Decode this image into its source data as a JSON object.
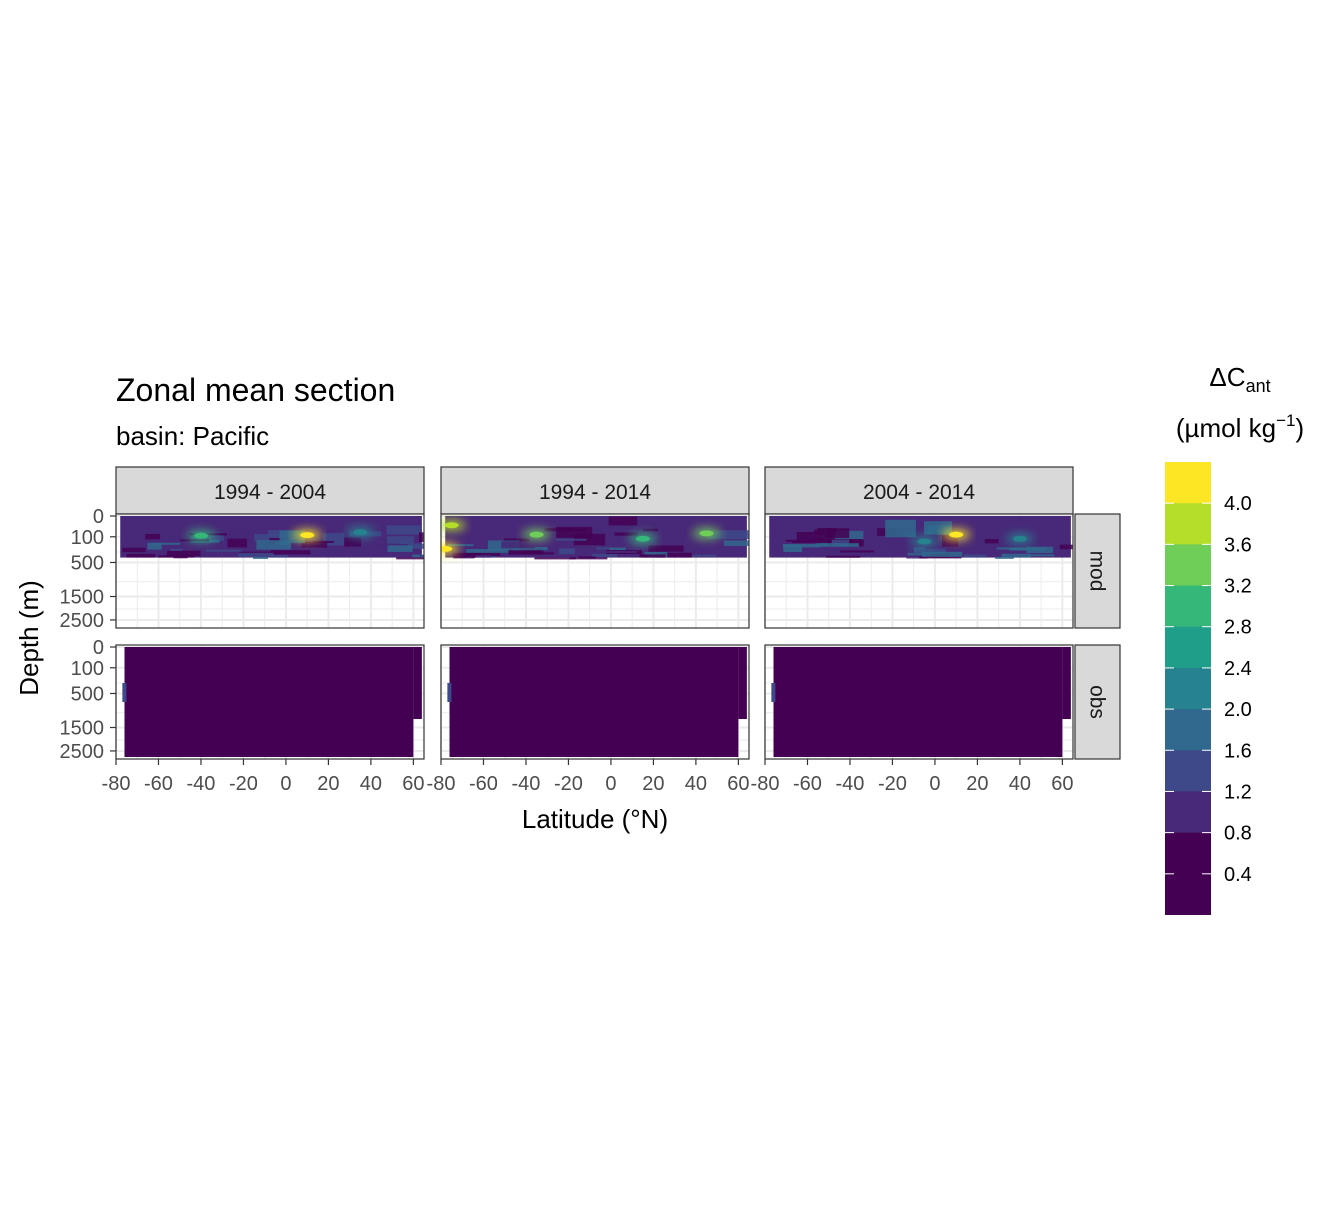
{
  "chart_data": {
    "type": "heatmap",
    "title": "Zonal mean section",
    "subtitle": "basin: Pacific",
    "xlabel": "Latitude (°N)",
    "ylabel": "Depth (m)",
    "xlim": [
      -80,
      65
    ],
    "x_ticks": [
      -80,
      -60,
      -40,
      -20,
      0,
      20,
      40,
      60
    ],
    "x_tick_labels": [
      "-80",
      "-60",
      "-40",
      "-20",
      "0",
      "20",
      "40",
      "60"
    ],
    "y_scale": "reversed sqrt",
    "ylim": [
      2800,
      0
    ],
    "y_ticks": [
      0,
      100,
      500,
      1500,
      2500
    ],
    "y_tick_labels": [
      "0",
      "100",
      "500",
      "1500",
      "2500"
    ],
    "grid": true,
    "legend_position": "right",
    "facet_columns": [
      "1994 - 2004",
      "1994 - 2014",
      "2004 - 2014"
    ],
    "facet_rows": [
      "mod",
      "obs"
    ],
    "legend": {
      "title_main": "ΔC",
      "title_sub": "ant",
      "unit_open": "(µmol kg",
      "unit_sup": "−1",
      "unit_close": ")",
      "breaks": [
        "4.0",
        "3.6",
        "3.2",
        "2.8",
        "2.4",
        "2.0",
        "1.6",
        "1.2",
        "0.8",
        "0.4"
      ],
      "break_values": [
        4.0,
        3.6,
        3.2,
        2.8,
        2.4,
        2.0,
        1.6,
        1.2,
        0.8,
        0.4
      ],
      "colors": [
        "#fde725",
        "#b5de2b",
        "#6ece58",
        "#35b779",
        "#1f9e89",
        "#26828e",
        "#31688e",
        "#3e4989",
        "#482878",
        "#440154"
      ]
    },
    "panels": [
      {
        "column": "1994 - 2004",
        "row": "mod",
        "lat_range": [
          -78,
          64
        ],
        "depth_max": 400,
        "hotspots": [
          {
            "lat": -40,
            "depth": 90,
            "value": 2.4
          },
          {
            "lat": 10,
            "depth": 85,
            "value": 3.6
          },
          {
            "lat": 35,
            "depth": 60,
            "value": 1.6
          }
        ]
      },
      {
        "column": "1994 - 2014",
        "row": "mod",
        "lat_range": [
          -78,
          64
        ],
        "depth_max": 400,
        "hotspots": [
          {
            "lat": -75,
            "depth": 20,
            "value": 3.2
          },
          {
            "lat": -78,
            "depth": 250,
            "value": 4.0
          },
          {
            "lat": -35,
            "depth": 80,
            "value": 2.8
          },
          {
            "lat": 15,
            "depth": 120,
            "value": 2.4
          },
          {
            "lat": 45,
            "depth": 70,
            "value": 2.8
          }
        ]
      },
      {
        "column": "2004 - 2014",
        "row": "mod",
        "lat_range": [
          -78,
          64
        ],
        "depth_max": 400,
        "hotspots": [
          {
            "lat": 10,
            "depth": 80,
            "value": 4.0
          },
          {
            "lat": -5,
            "depth": 150,
            "value": 1.6
          },
          {
            "lat": 40,
            "depth": 120,
            "value": 1.6
          }
        ]
      },
      {
        "column": "1994 - 2004",
        "row": "obs",
        "lat_range": [
          -76,
          60
        ],
        "depth_max": 2800,
        "value": 0.2
      },
      {
        "column": "1994 - 2014",
        "row": "obs",
        "lat_range": [
          -76,
          60
        ],
        "depth_max": 2800,
        "value": 0.2
      },
      {
        "column": "2004 - 2014",
        "row": "obs",
        "lat_range": [
          -76,
          60
        ],
        "depth_max": 2800,
        "value": 0.2
      }
    ]
  }
}
